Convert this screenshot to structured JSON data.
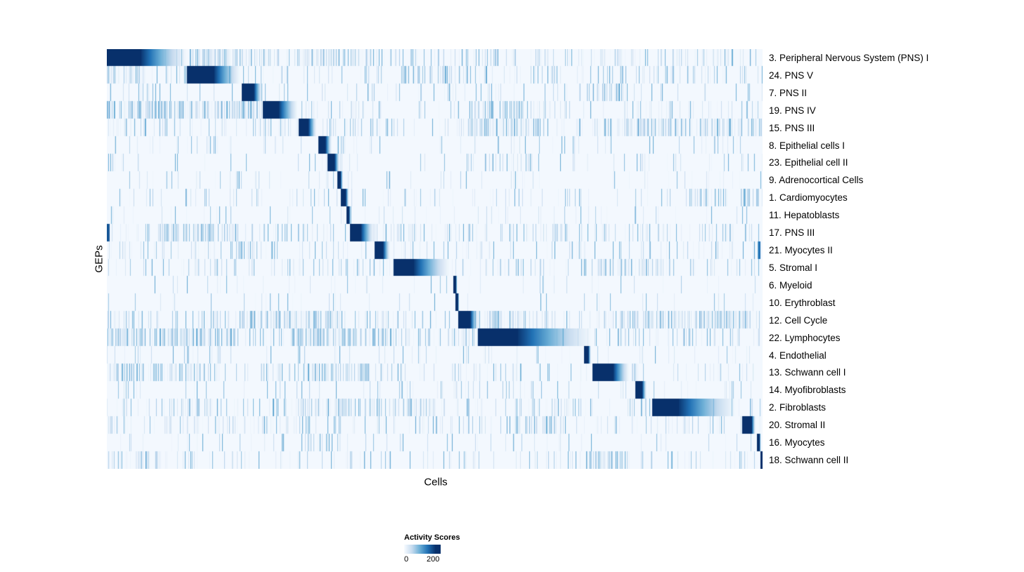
{
  "figure": {
    "xlabel": "Cells",
    "ylabel": "GEPs"
  },
  "legend": {
    "title": "Activity Scores",
    "ticks": [
      "0",
      "200"
    ]
  },
  "chart_data": {
    "type": "heatmap",
    "title": "",
    "xlabel": "Cells",
    "ylabel": "GEPs",
    "grid": false,
    "colorbar": {
      "title": "Activity Scores",
      "min": 0,
      "max": 200,
      "palette": [
        "#f7fbff",
        "#c6dbef",
        "#6baed6",
        "#2171b5",
        "#08306b"
      ]
    },
    "description": "Diagonalized heatmap of GEP activity scores per cell; each row has a contiguous block of high activity (block: [solid_start, solid_end, fade_end] as fractions of the cell axis) plus sparse vertical noise streaks (noise: base density; clusters: [start, end, extra_density]).",
    "rows": [
      {
        "label": "3. Peripheral Nervous System (PNS) I",
        "block": [
          0.0,
          0.052,
          0.125
        ],
        "noise": 0.22,
        "clusters": [
          [
            0.125,
            0.2,
            0.45
          ],
          [
            0.2,
            0.4,
            0.2
          ]
        ]
      },
      {
        "label": "24. PNS V",
        "block": [
          0.122,
          0.163,
          0.205
        ],
        "noise": 0.18,
        "clusters": [
          [
            0.0,
            0.05,
            0.3
          ],
          [
            0.45,
            0.55,
            0.25
          ]
        ]
      },
      {
        "label": "7. PNS II",
        "block": [
          0.205,
          0.224,
          0.237
        ],
        "noise": 0.1,
        "clusters": [
          [
            0.73,
            0.79,
            0.45
          ]
        ]
      },
      {
        "label": "19. PNS IV",
        "block": [
          0.237,
          0.262,
          0.292
        ],
        "noise": 0.15,
        "clusters": [
          [
            0.0,
            0.23,
            0.5
          ],
          [
            0.55,
            0.63,
            0.35
          ]
        ]
      },
      {
        "label": "15. PNS III",
        "block": [
          0.292,
          0.307,
          0.32
        ],
        "noise": 0.2,
        "clusters": [
          [
            0.55,
            0.66,
            0.35
          ],
          [
            0.78,
            1.0,
            0.3
          ]
        ]
      },
      {
        "label": "8. Epithelial cells I",
        "block": [
          0.322,
          0.333,
          0.343
        ],
        "noise": 0.07,
        "clusters": [
          [
            0.1,
            0.2,
            0.12
          ]
        ]
      },
      {
        "label": "23. Epithelial cell II",
        "block": [
          0.336,
          0.347,
          0.355
        ],
        "noise": 0.07,
        "clusters": [
          [
            0.55,
            0.65,
            0.25
          ]
        ]
      },
      {
        "label": "9. Adrenocortical Cells",
        "block": [
          0.351,
          0.356,
          0.36
        ],
        "noise": 0.07,
        "clusters": []
      },
      {
        "label": "1. Cardiomyocytes",
        "block": [
          0.356,
          0.364,
          0.369
        ],
        "noise": 0.09,
        "clusters": [
          [
            0.88,
            1.0,
            0.25
          ]
        ]
      },
      {
        "label": "11. Hepatoblasts",
        "block": [
          0.365,
          0.369,
          0.372
        ],
        "noise": 0.06,
        "clusters": []
      },
      {
        "label": "17. PNS III",
        "block": [
          0.37,
          0.387,
          0.408
        ],
        "noise": 0.2,
        "clusters": [
          [
            0.08,
            0.2,
            0.35
          ]
        ],
        "extra": [
          [
            0.0,
            0.004,
            0.85
          ]
        ]
      },
      {
        "label": "21. Myocytes II",
        "block": [
          0.408,
          0.421,
          0.432
        ],
        "noise": 0.13,
        "clusters": [
          [
            0.2,
            0.26,
            0.25
          ]
        ],
        "extra": [
          [
            0.993,
            0.996,
            0.75
          ]
        ]
      },
      {
        "label": "5. Stromal I",
        "block": [
          0.437,
          0.468,
          0.525
        ],
        "noise": 0.17,
        "clusters": [
          [
            0.75,
            0.85,
            0.3
          ]
        ]
      },
      {
        "label": "6. Myeloid",
        "block": [
          0.528,
          0.532,
          0.534
        ],
        "noise": 0.05,
        "clusters": []
      },
      {
        "label": "10. Erythroblast",
        "block": [
          0.531,
          0.535,
          0.537
        ],
        "noise": 0.05,
        "clusters": []
      },
      {
        "label": "12. Cell Cycle",
        "block": [
          0.535,
          0.554,
          0.566
        ],
        "noise": 0.22,
        "clusters": [
          [
            0.2,
            0.35,
            0.4
          ],
          [
            0.55,
            0.62,
            0.3
          ],
          [
            0.78,
            0.98,
            0.4
          ]
        ]
      },
      {
        "label": "22. Lymphocytes",
        "block": [
          0.565,
          0.627,
          0.745
        ],
        "noise": 0.25,
        "clusters": [
          [
            0.0,
            0.2,
            0.4
          ],
          [
            0.28,
            0.45,
            0.45
          ]
        ]
      },
      {
        "label": "4. Endothelial",
        "block": [
          0.727,
          0.734,
          0.738
        ],
        "noise": 0.07,
        "clusters": []
      },
      {
        "label": "13. Schwann cell I",
        "block": [
          0.74,
          0.772,
          0.797
        ],
        "noise": 0.17,
        "clusters": [
          [
            0.0,
            0.15,
            0.3
          ],
          [
            0.3,
            0.4,
            0.25
          ]
        ]
      },
      {
        "label": "14. Myofibroblasts",
        "block": [
          0.806,
          0.816,
          0.823
        ],
        "noise": 0.09,
        "clusters": []
      },
      {
        "label": "2. Fibroblasts",
        "block": [
          0.831,
          0.872,
          0.963
        ],
        "noise": 0.17,
        "clusters": [
          [
            0.28,
            0.5,
            0.35
          ],
          [
            0.1,
            0.2,
            0.25
          ]
        ]
      },
      {
        "label": "20. Stromal II",
        "block": [
          0.968,
          0.983,
          0.989
        ],
        "noise": 0.15,
        "clusters": [
          [
            0.6,
            0.7,
            0.25
          ]
        ]
      },
      {
        "label": "16. Myocytes",
        "block": [
          0.991,
          0.995,
          0.997
        ],
        "noise": 0.07,
        "clusters": [
          [
            0.3,
            0.36,
            0.25
          ]
        ]
      },
      {
        "label": "18. Schwann cell II",
        "block": [
          0.996,
          1.0,
          1.0
        ],
        "noise": 0.13,
        "clusters": [
          [
            0.73,
            0.8,
            0.45
          ],
          [
            0.0,
            0.1,
            0.25
          ]
        ]
      }
    ]
  }
}
